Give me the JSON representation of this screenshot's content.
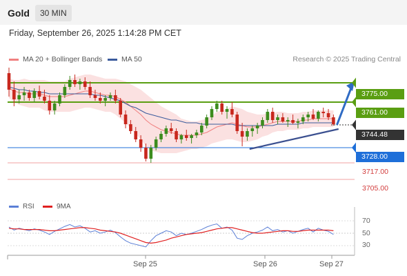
{
  "header": {
    "title": "Gold",
    "timeframe": "30 MIN"
  },
  "datetime": "Friday, September 26, 2025 1:14:28 PM CET",
  "legend": {
    "bollinger": {
      "label": "MA 20 + Bollinger Bands",
      "color": "#f08080"
    },
    "ma50": {
      "label": "MA 50",
      "color": "#3a5a9c"
    }
  },
  "copyright": "Research © 2025 Trading Central",
  "levels": {
    "resistance2": {
      "label": "3775.00",
      "color": "#5a9e12"
    },
    "resistance1": {
      "label": "3761.00",
      "color": "#5a9e12"
    },
    "current": {
      "label": "3744.48",
      "color": "#333333"
    },
    "pivot": {
      "label": "3728.00",
      "color": "#1e6fd9"
    },
    "support1": {
      "label": "3717.00",
      "color": "#d23c3c"
    },
    "support2": {
      "label": "3705.00",
      "color": "#d23c3c"
    }
  },
  "rsi_legend": {
    "rsi": {
      "label": "RSI",
      "color": "#5b7fd6"
    },
    "ma9": {
      "label": "9MA",
      "color": "#e02020"
    }
  },
  "rsi_ticks": [
    "70",
    "50",
    "30"
  ],
  "x_labels": [
    "Sep 25",
    "Sep 26",
    "Sep 27"
  ],
  "chart_data": {
    "type": "candlestick",
    "timeframe": "30 MIN",
    "y_range": [
      3700,
      3788
    ],
    "levels": [
      3775.0,
      3761.0,
      3744.48,
      3728.0,
      3717.0,
      3705.0
    ],
    "candles": [
      [
        3782,
        3786,
        3765,
        3770
      ],
      [
        3770,
        3776,
        3758,
        3763
      ],
      [
        3763,
        3770,
        3760,
        3766
      ],
      [
        3766,
        3772,
        3762,
        3768
      ],
      [
        3768,
        3770,
        3762,
        3764
      ],
      [
        3764,
        3771,
        3761,
        3769
      ],
      [
        3769,
        3773,
        3763,
        3765
      ],
      [
        3765,
        3770,
        3760,
        3762
      ],
      [
        3762,
        3766,
        3752,
        3755
      ],
      [
        3755,
        3762,
        3752,
        3760
      ],
      [
        3760,
        3768,
        3758,
        3766
      ],
      [
        3766,
        3774,
        3764,
        3772
      ],
      [
        3772,
        3780,
        3770,
        3777
      ],
      [
        3777,
        3781,
        3772,
        3774
      ],
      [
        3774,
        3778,
        3770,
        3776
      ],
      [
        3776,
        3779,
        3770,
        3772
      ],
      [
        3772,
        3776,
        3764,
        3766
      ],
      [
        3766,
        3770,
        3762,
        3764
      ],
      [
        3764,
        3768,
        3760,
        3762
      ],
      [
        3762,
        3766,
        3758,
        3764
      ],
      [
        3764,
        3768,
        3762,
        3766
      ],
      [
        3766,
        3770,
        3760,
        3762
      ],
      [
        3762,
        3764,
        3750,
        3752
      ],
      [
        3752,
        3755,
        3742,
        3745
      ],
      [
        3745,
        3748,
        3738,
        3740
      ],
      [
        3740,
        3743,
        3732,
        3734
      ],
      [
        3734,
        3737,
        3725,
        3728
      ],
      [
        3728,
        3731,
        3718,
        3720
      ],
      [
        3720,
        3730,
        3717,
        3728
      ],
      [
        3728,
        3736,
        3726,
        3734
      ],
      [
        3734,
        3740,
        3732,
        3738
      ],
      [
        3738,
        3744,
        3736,
        3742
      ],
      [
        3742,
        3746,
        3738,
        3740
      ],
      [
        3740,
        3742,
        3732,
        3734
      ],
      [
        3734,
        3738,
        3731,
        3737
      ],
      [
        3737,
        3741,
        3733,
        3735
      ],
      [
        3735,
        3738,
        3731,
        3737
      ],
      [
        3737,
        3741,
        3735,
        3739
      ],
      [
        3739,
        3746,
        3737,
        3744
      ],
      [
        3744,
        3752,
        3742,
        3750
      ],
      [
        3750,
        3758,
        3748,
        3756
      ],
      [
        3756,
        3762,
        3754,
        3760
      ],
      [
        3760,
        3762,
        3752,
        3754
      ],
      [
        3754,
        3758,
        3749,
        3756
      ],
      [
        3756,
        3761,
        3750,
        3752
      ],
      [
        3752,
        3754,
        3738,
        3740
      ],
      [
        3740,
        3746,
        3729,
        3736
      ],
      [
        3736,
        3742,
        3733,
        3740
      ],
      [
        3740,
        3744,
        3736,
        3742
      ],
      [
        3742,
        3746,
        3738,
        3744
      ],
      [
        3744,
        3750,
        3742,
        3748
      ],
      [
        3748,
        3756,
        3746,
        3754
      ],
      [
        3754,
        3757,
        3746,
        3748
      ],
      [
        3748,
        3752,
        3745,
        3750
      ],
      [
        3750,
        3753,
        3746,
        3747
      ],
      [
        3747,
        3750,
        3743,
        3748
      ],
      [
        3748,
        3752,
        3745,
        3746
      ],
      [
        3746,
        3749,
        3742,
        3747
      ],
      [
        3747,
        3752,
        3745,
        3750
      ],
      [
        3750,
        3754,
        3747,
        3752
      ],
      [
        3752,
        3756,
        3748,
        3749
      ],
      [
        3749,
        3755,
        3747,
        3754
      ],
      [
        3754,
        3757,
        3750,
        3753
      ],
      [
        3753,
        3756,
        3748,
        3750
      ],
      [
        3750,
        3752,
        3744,
        3745
      ]
    ],
    "rsi": [
      60,
      55,
      58,
      56,
      54,
      57,
      55,
      52,
      48,
      53,
      57,
      61,
      64,
      60,
      62,
      58,
      52,
      54,
      50,
      52,
      55,
      51,
      44,
      38,
      34,
      32,
      30,
      28,
      38,
      46,
      50,
      54,
      52,
      46,
      50,
      48,
      50,
      53,
      56,
      60,
      63,
      65,
      58,
      60,
      55,
      42,
      40,
      46,
      50,
      52,
      55,
      60,
      54,
      56,
      52,
      54,
      50,
      53,
      56,
      58,
      52,
      58,
      55,
      53,
      48
    ],
    "rsi_ma9": [
      58,
      57,
      57,
      56,
      56,
      56,
      56,
      55,
      54,
      54,
      55,
      56,
      57,
      58,
      59,
      59,
      58,
      57,
      55,
      54,
      53,
      52,
      50,
      47,
      44,
      41,
      38,
      35,
      34,
      35,
      37,
      39,
      42,
      44,
      46,
      48,
      49,
      50,
      51,
      53,
      55,
      57,
      58,
      59,
      59,
      57,
      55,
      53,
      51,
      50,
      50,
      51,
      52,
      53,
      54,
      54,
      53,
      53,
      54,
      55,
      55,
      55,
      55,
      55,
      54
    ],
    "ma20": [
      3771,
      3769,
      3768,
      3768,
      3767,
      3767,
      3767,
      3766,
      3765,
      3765,
      3765,
      3765,
      3766,
      3767,
      3768,
      3769,
      3769,
      3768,
      3767,
      3766,
      3766,
      3765,
      3763,
      3761,
      3758,
      3755,
      3752,
      3748,
      3745,
      3743,
      3741,
      3740,
      3739,
      3738,
      3737,
      3737,
      3737,
      3737,
      3738,
      3739,
      3741,
      3743,
      3744,
      3745,
      3746,
      3745,
      3744,
      3743,
      3743,
      3743,
      3744,
      3745,
      3746,
      3747,
      3747,
      3747,
      3747,
      3747,
      3748,
      3748,
      3749,
      3749,
      3749,
      3749,
      3749
    ],
    "ma50": [
      3772,
      3771,
      3770,
      3770,
      3769,
      3769,
      3768,
      3768,
      3767,
      3767,
      3767,
      3767,
      3767,
      3767,
      3767,
      3767,
      3767,
      3766,
      3766,
      3765,
      3764,
      3763,
      3762,
      3760,
      3758,
      3757,
      3755,
      3753,
      3752,
      3751,
      3750,
      3749,
      3748,
      3748,
      3747,
      3746,
      3746,
      3746,
      3745,
      3745,
      3745,
      3745,
      3745,
      3745,
      3745,
      3744,
      3744,
      3744,
      3744,
      3744,
      3744,
      3744,
      3744,
      3745,
      3745,
      3745,
      3745,
      3745,
      3746,
      3746,
      3746,
      3746,
      3746,
      3746,
      3746
    ],
    "bb_width": [
      7,
      8,
      9,
      10,
      10,
      10,
      10,
      11,
      11,
      11,
      11,
      11,
      12,
      12,
      12,
      12,
      12,
      12,
      12,
      12,
      12,
      13,
      14,
      15,
      16,
      17,
      18,
      19,
      19,
      18,
      17,
      16,
      15,
      14,
      12,
      11,
      10,
      10,
      10,
      10,
      10,
      11,
      11,
      11,
      12,
      12,
      12,
      11,
      10,
      9,
      8,
      8,
      7,
      7,
      7,
      6,
      6,
      6,
      6,
      6,
      6,
      6,
      6,
      6,
      6
    ],
    "trendline": {
      "from": [
        48,
        3729.5
      ],
      "to": [
        65,
        3741.5
      ]
    },
    "projection_arrow": {
      "from": [
        64,
        3744.5
      ],
      "to": [
        71,
        3775
      ]
    }
  }
}
